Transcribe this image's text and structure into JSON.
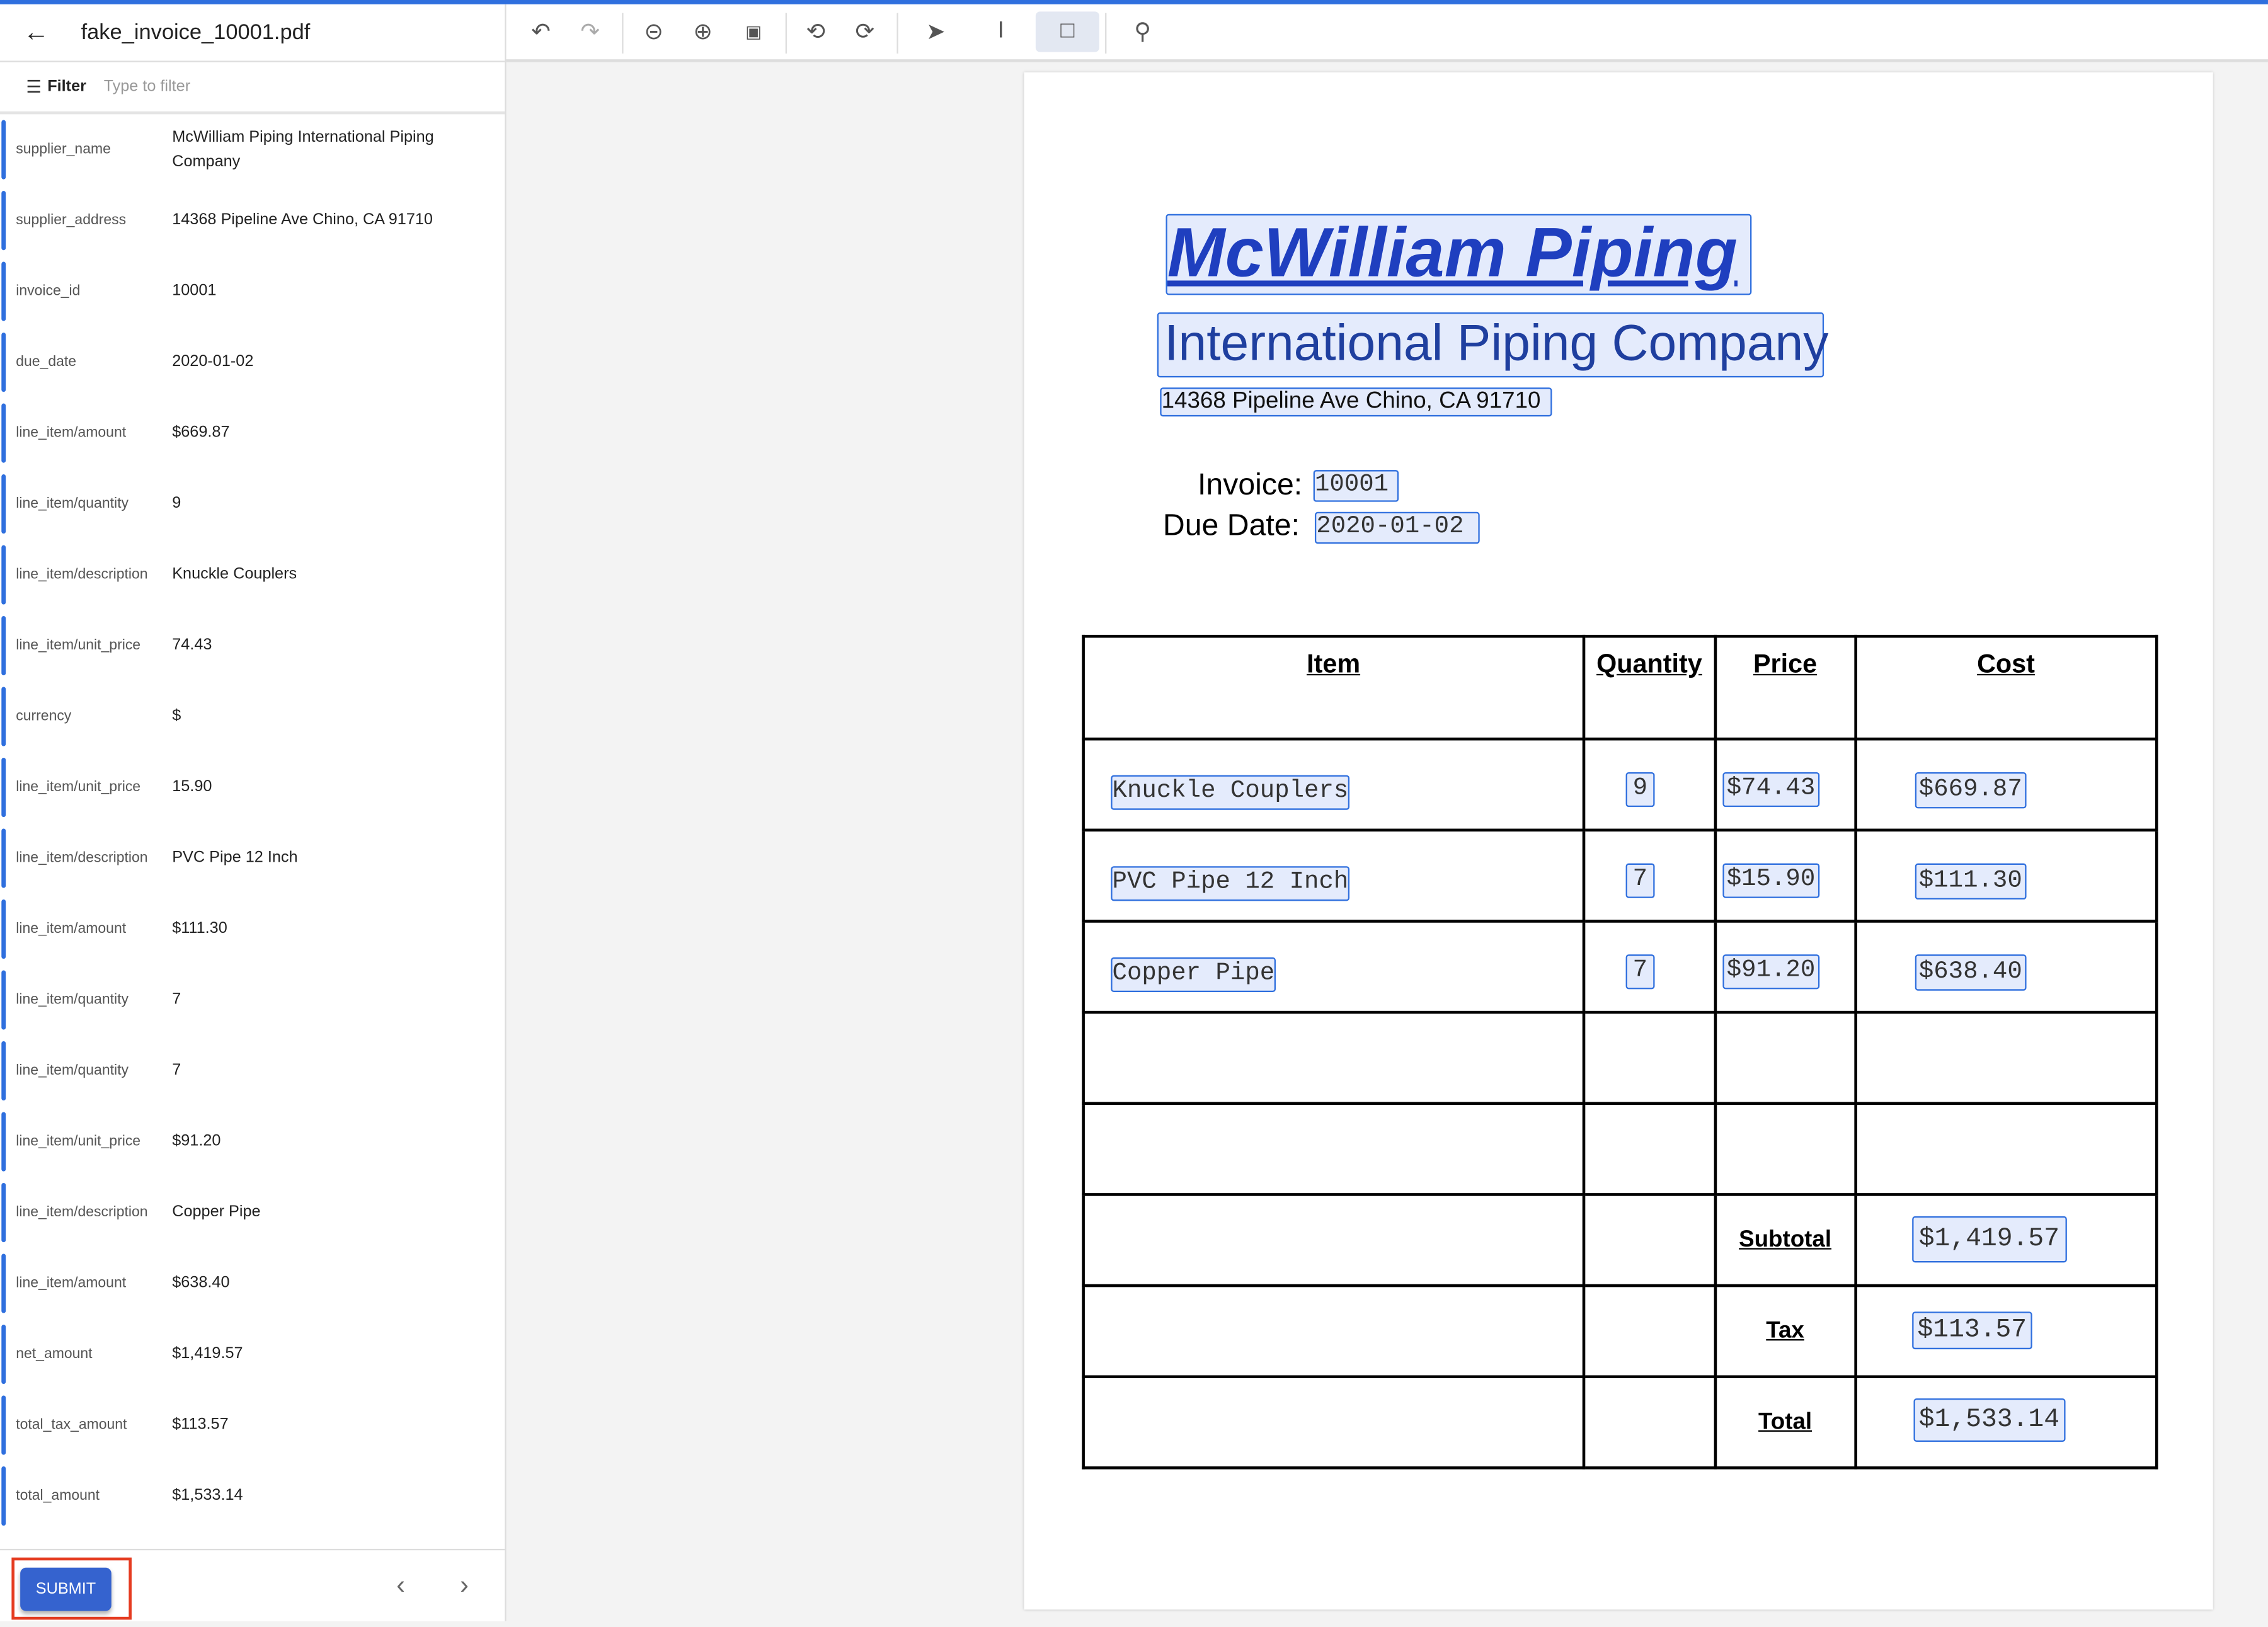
{
  "header": {
    "back_icon": "arrow-left-icon",
    "file_name": "fake_invoice_10001.pdf"
  },
  "filter": {
    "label": "Filter",
    "placeholder": "Type to filter",
    "icon": "filter-icon"
  },
  "fields": [
    {
      "key": "supplier_name",
      "value": "McWilliam Piping International Piping Company"
    },
    {
      "key": "supplier_address",
      "value": "14368 Pipeline Ave Chino, CA 91710"
    },
    {
      "key": "invoice_id",
      "value": "10001"
    },
    {
      "key": "due_date",
      "value": "2020-01-02"
    },
    {
      "key": "line_item/amount",
      "value": "$669.87"
    },
    {
      "key": "line_item/quantity",
      "value": "9"
    },
    {
      "key": "line_item/description",
      "value": "Knuckle Couplers"
    },
    {
      "key": "line_item/unit_price",
      "value": "74.43"
    },
    {
      "key": "currency",
      "value": "$"
    },
    {
      "key": "line_item/unit_price",
      "value": "15.90"
    },
    {
      "key": "line_item/description",
      "value": "PVC Pipe 12 Inch"
    },
    {
      "key": "line_item/amount",
      "value": "$111.30"
    },
    {
      "key": "line_item/quantity",
      "value": "7"
    },
    {
      "key": "line_item/quantity",
      "value": "7"
    },
    {
      "key": "line_item/unit_price",
      "value": "$91.20"
    },
    {
      "key": "line_item/description",
      "value": "Copper Pipe"
    },
    {
      "key": "line_item/amount",
      "value": "$638.40"
    },
    {
      "key": "net_amount",
      "value": "$1,419.57"
    },
    {
      "key": "total_tax_amount",
      "value": "$113.57"
    },
    {
      "key": "total_amount",
      "value": "$1,533.14"
    }
  ],
  "footer": {
    "submit_label": "SUBMIT"
  },
  "toolbar": [
    "undo-icon",
    "redo-icon",
    "zoom-out-icon",
    "zoom-in-icon",
    "fit-page-icon",
    "rotate-left-icon",
    "rotate-right-icon",
    "pointer-icon",
    "text-select-icon",
    "box-select-icon",
    "search-icon"
  ],
  "colors": {
    "accent": "#2f6fde",
    "submit": "#3563cf",
    "highlight": "#e53b20"
  },
  "document": {
    "title": "McWilliam Piping",
    "subtitle": "International Piping Company",
    "address": "14368 Pipeline Ave Chino, CA 91710",
    "invoice_label": "Invoice:",
    "invoice_value": "10001",
    "due_label": "Due Date:",
    "due_value": "2020-01-02",
    "columns": [
      "Item",
      "Quantity",
      "Price",
      "Cost"
    ],
    "items": [
      {
        "item": "Knuckle Couplers",
        "qty": "9",
        "price": "$74.43",
        "cost": "$669.87"
      },
      {
        "item": "PVC Pipe 12 Inch",
        "qty": "7",
        "price": "$15.90",
        "cost": "$111.30"
      },
      {
        "item": "Copper Pipe",
        "qty": "7",
        "price": "$91.20",
        "cost": "$638.40"
      }
    ],
    "subtotal_label": "Subtotal",
    "subtotal": "$1,419.57",
    "tax_label": "Tax",
    "tax": "$113.57",
    "total_label": "Total",
    "total": "$1,533.14"
  }
}
